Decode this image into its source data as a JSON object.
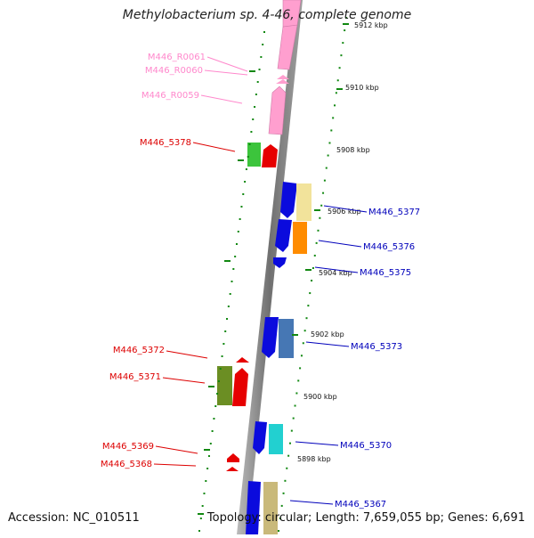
{
  "header": {
    "title": "Methylobacterium sp. 4-46, complete genome"
  },
  "footer": {
    "accession": "Accession: NC_010511",
    "topology": "Topology: circular; Length: 7,659,055 bp; Genes: 6,691"
  },
  "scale": {
    "ticks": [
      {
        "label": "5912 kbp"
      },
      {
        "label": "5910 kbp"
      },
      {
        "label": "5908 kbp"
      },
      {
        "label": "5906 kbp"
      },
      {
        "label": "5904 kbp"
      },
      {
        "label": "5902 kbp"
      },
      {
        "label": "5900 kbp"
      },
      {
        "label": "5898 kbp"
      }
    ]
  },
  "genes": {
    "left": [
      {
        "label": "M446_R0061",
        "color": "#ff88cc"
      },
      {
        "label": "M446_R0060",
        "color": "#ff88cc"
      },
      {
        "label": "M446_R0059",
        "color": "#ff88cc"
      },
      {
        "label": "M446_5378",
        "color": "#dd0000"
      },
      {
        "label": "M446_5372",
        "color": "#dd0000"
      },
      {
        "label": "M446_5371",
        "color": "#dd0000"
      },
      {
        "label": "M446_5369",
        "color": "#dd0000"
      },
      {
        "label": "M446_5368",
        "color": "#dd0000"
      }
    ],
    "right": [
      {
        "label": "M446_5377",
        "color": "#0000bb"
      },
      {
        "label": "M446_5376",
        "color": "#0000bb"
      },
      {
        "label": "M446_5375",
        "color": "#0000bb"
      },
      {
        "label": "M446_5373",
        "color": "#0000bb"
      },
      {
        "label": "M446_5370",
        "color": "#0000bb"
      },
      {
        "label": "M446_5367",
        "color": "#0000bb"
      }
    ]
  }
}
